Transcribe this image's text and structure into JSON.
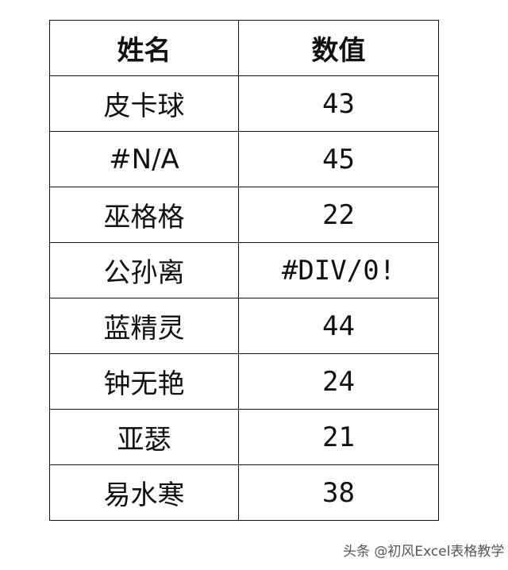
{
  "table": {
    "headers": [
      "姓名",
      "数值"
    ],
    "rows": [
      [
        "皮卡球",
        "43"
      ],
      [
        "#N/A",
        "45"
      ],
      [
        "巫格格",
        "22"
      ],
      [
        "公孙离",
        "#DIV/0!"
      ],
      [
        "蓝精灵",
        "44"
      ],
      [
        "钟无艳",
        "24"
      ],
      [
        "亚瑟",
        "21"
      ],
      [
        "易水寒",
        "38"
      ]
    ]
  },
  "watermark": "头条 @初风Excel表格教学"
}
